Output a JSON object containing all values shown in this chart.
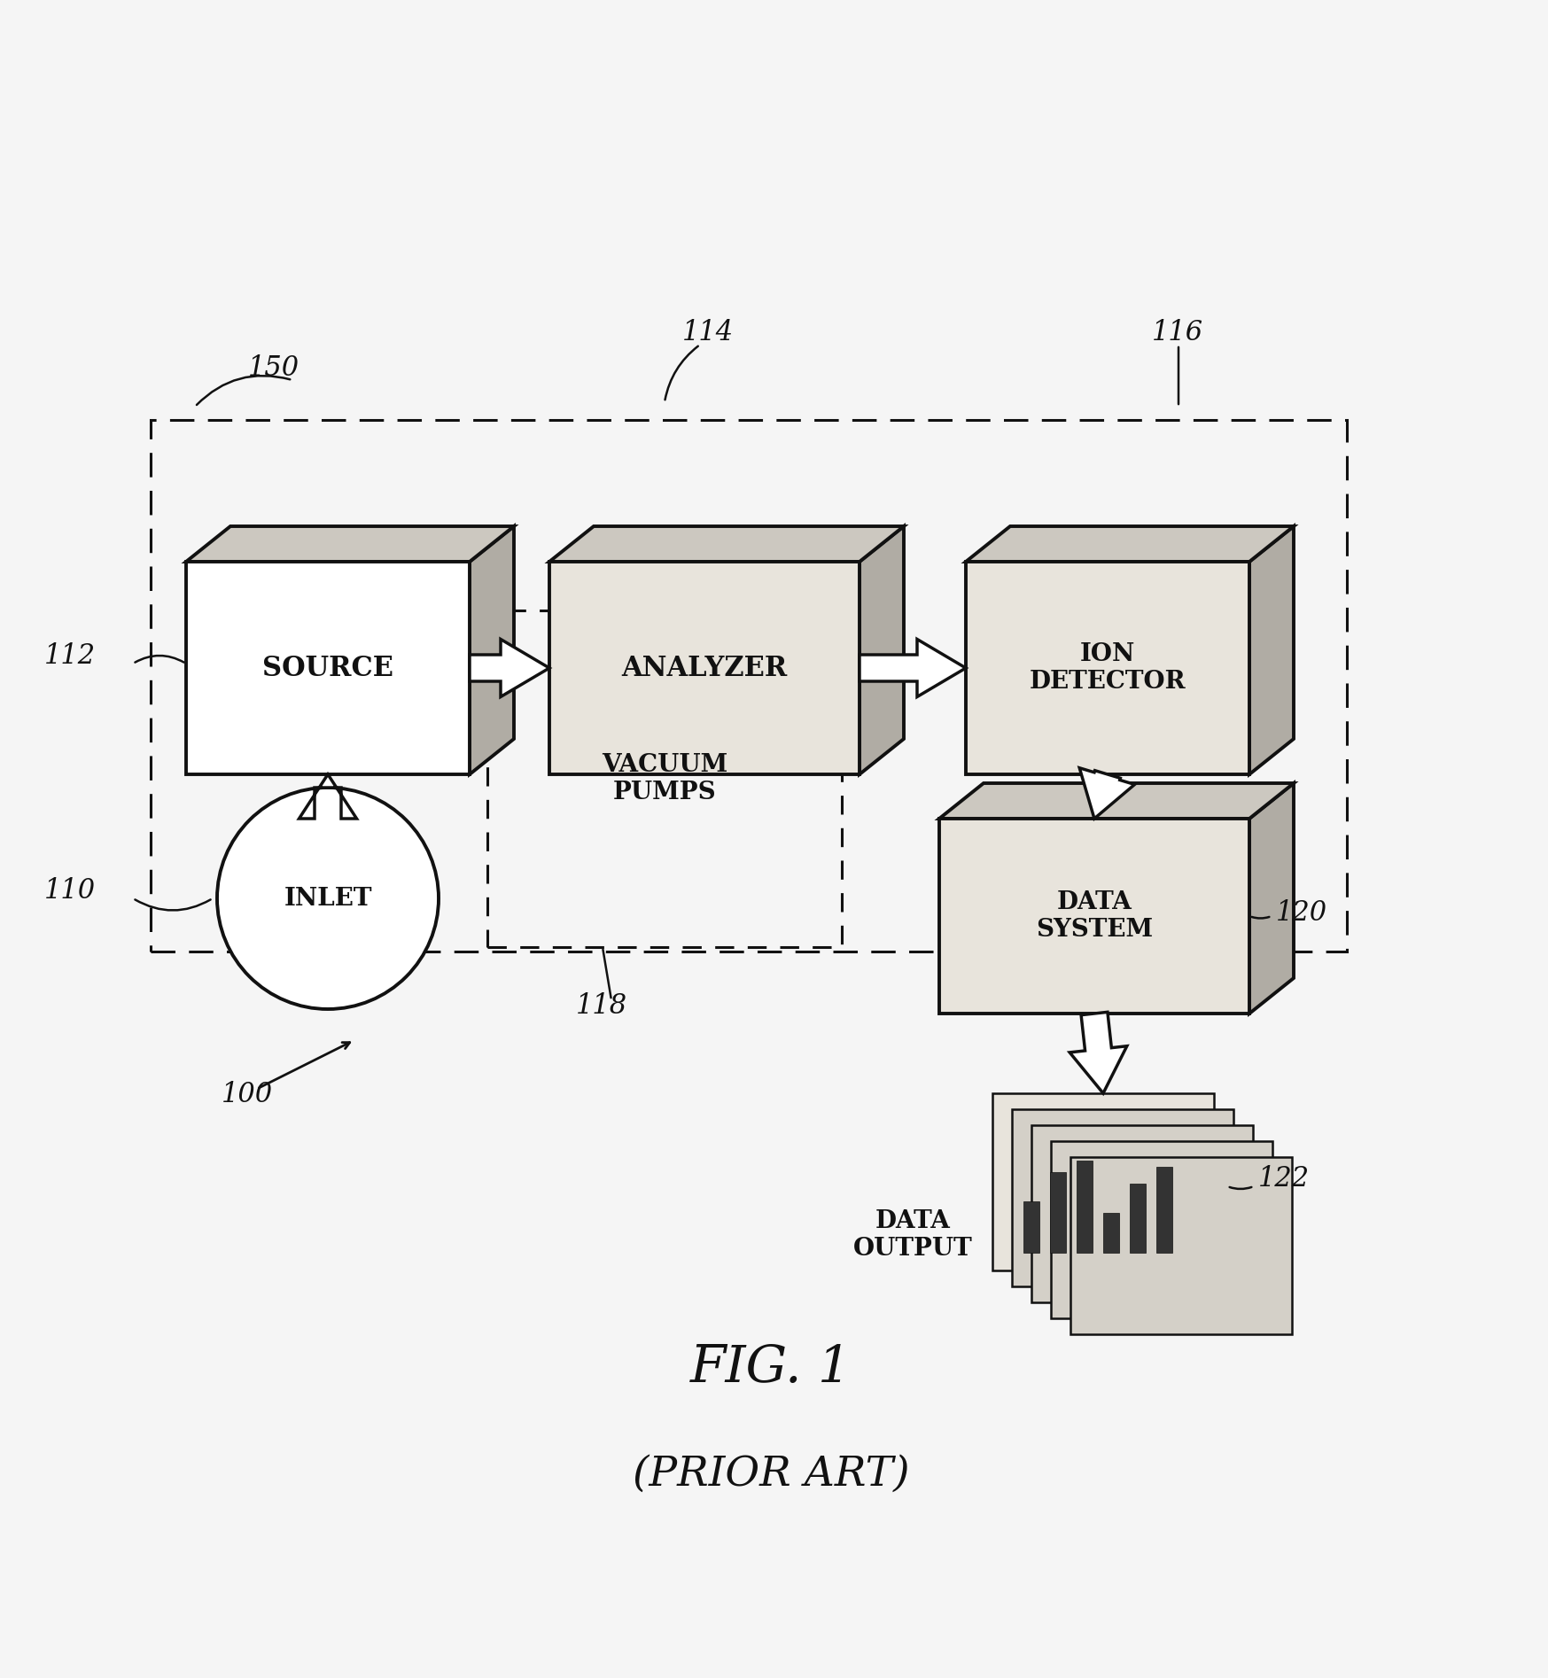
{
  "bg_color": "#f5f5f5",
  "title": "FIG. 1",
  "subtitle": "(PRIOR ART)",
  "labels": {
    "source": "SOURCE",
    "analyzer": "ANALYZER",
    "ion_detector": "ION\nDETECTOR",
    "data_system": "DATA\nSYSTEM",
    "inlet": "INLET",
    "vacuum_pumps": "VACUUM\nPUMPS",
    "data_output": "DATA\nOUTPUT"
  },
  "ref_numbers": {
    "n100": "100",
    "n110": "110",
    "n112": "112",
    "n114": "114",
    "n116": "116",
    "n118": "118",
    "n120": "120",
    "n122": "122",
    "n150": "150"
  },
  "ink_color": "#111111",
  "box_fill": "#ffffff",
  "box_fill_shaded": "#d0ccc4"
}
